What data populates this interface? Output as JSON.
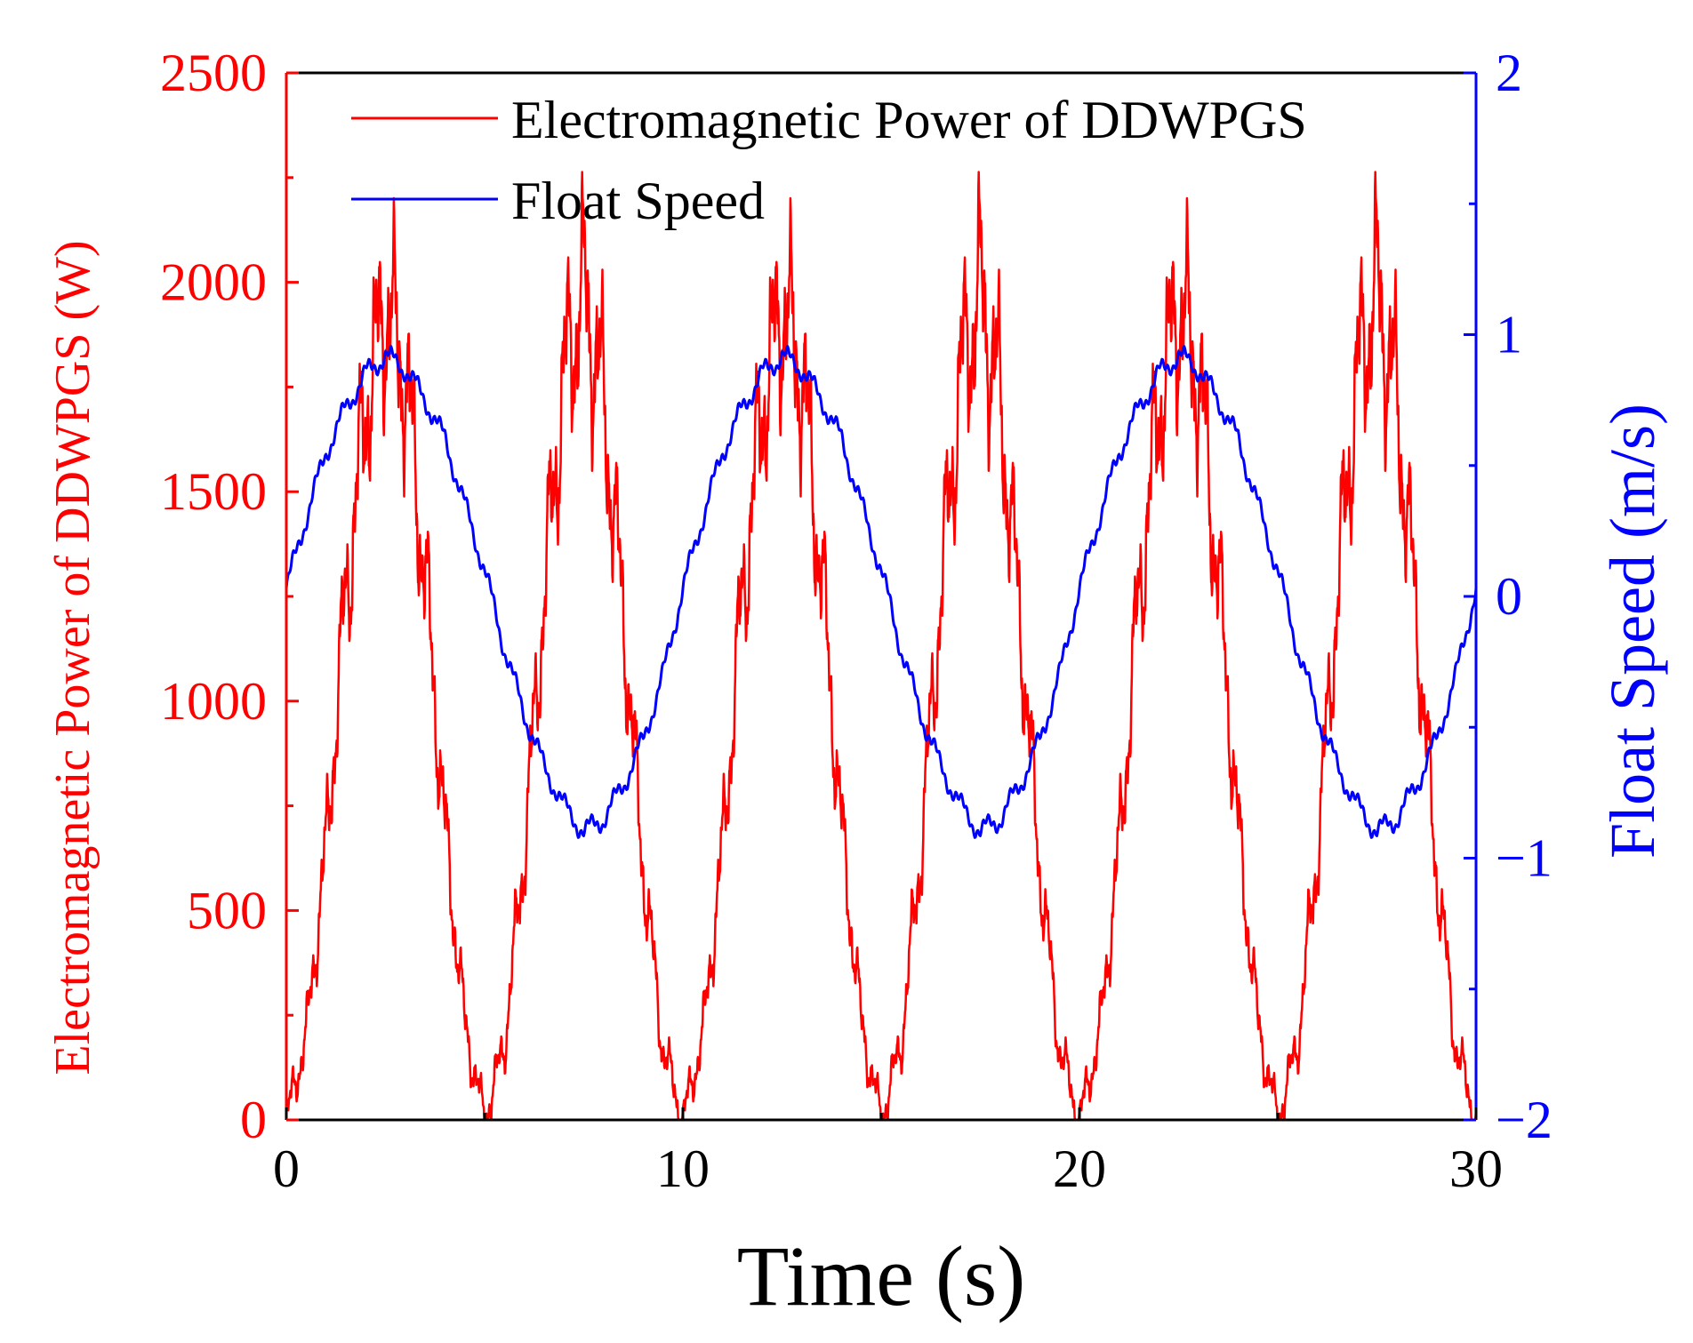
{
  "chart_data": {
    "type": "line",
    "title": "",
    "xlabel": "Time (s)",
    "ylabel_left": "Electromagnetic Power of DDWPGS (W)",
    "ylabel_right": "Float Speed (m/s)",
    "xlim": [
      0,
      30
    ],
    "ylim_left": [
      0,
      2500
    ],
    "ylim_right": [
      -2,
      2
    ],
    "x_ticks": [
      "0",
      "10",
      "20",
      "30"
    ],
    "y_left_ticks": [
      "0",
      "500",
      "1000",
      "1500",
      "2000",
      "2500"
    ],
    "y_right_ticks": [
      "−2",
      "−1",
      "0",
      "1",
      "2"
    ],
    "grid": false,
    "legend_position": "top",
    "period_s": 10,
    "series": [
      {
        "name": "Electromagnetic Power of DDWPGS",
        "axis": "left",
        "color": "#ff0000",
        "x": [
          0,
          0.5,
          1,
          1.5,
          2,
          2.5,
          3,
          3.5,
          4,
          4.5,
          5,
          5.5,
          6,
          6.5,
          7,
          7.5,
          8,
          8.5,
          9,
          9.5,
          10,
          10.5,
          11,
          11.5,
          12,
          12.5,
          13,
          13.5,
          14,
          14.5,
          15,
          15.5,
          16,
          16.5,
          17,
          17.5,
          18,
          18.5,
          19,
          19.5,
          20,
          20.5,
          21,
          21.5,
          22,
          22.5,
          23,
          23.5,
          24,
          24.5,
          25,
          25.5,
          26,
          26.5,
          27,
          27.5,
          28,
          28.5,
          29,
          29.5,
          30
        ],
        "values": [
          0,
          200,
          650,
          1250,
          1700,
          1950,
          1780,
          1300,
          700,
          230,
          0,
          180,
          640,
          1250,
          1780,
          1980,
          1720,
          1200,
          600,
          170,
          0,
          200,
          650,
          1250,
          1700,
          1950,
          1780,
          1300,
          700,
          230,
          0,
          180,
          640,
          1250,
          1780,
          1980,
          1720,
          1200,
          600,
          170,
          0,
          200,
          650,
          1250,
          1700,
          1950,
          1780,
          1300,
          700,
          230,
          0,
          180,
          640,
          1250,
          1780,
          1980,
          1720,
          1200,
          600,
          170,
          0
        ]
      },
      {
        "name": "Float Speed",
        "axis": "right",
        "color": "#0000ff",
        "x": [
          0,
          0.5,
          1,
          1.5,
          2,
          2.5,
          3,
          3.5,
          4,
          4.5,
          5,
          5.5,
          6,
          6.5,
          7,
          7.5,
          8,
          8.5,
          9,
          9.5,
          10,
          10.5,
          11,
          11.5,
          12,
          12.5,
          13,
          13.5,
          14,
          14.5,
          15,
          15.5,
          16,
          16.5,
          17,
          17.5,
          18,
          18.5,
          19,
          19.5,
          20,
          20.5,
          21,
          21.5,
          22,
          22.5,
          23,
          23.5,
          24,
          24.5,
          25,
          25.5,
          26,
          26.5,
          27,
          27.5,
          28,
          28.5,
          29,
          29.5,
          30
        ],
        "values": [
          0.03,
          0.3,
          0.55,
          0.72,
          0.85,
          0.92,
          0.87,
          0.75,
          0.6,
          0.35,
          0.1,
          -0.2,
          -0.45,
          -0.65,
          -0.8,
          -0.9,
          -0.85,
          -0.72,
          -0.55,
          -0.3,
          0.03,
          0.3,
          0.55,
          0.72,
          0.85,
          0.92,
          0.87,
          0.75,
          0.6,
          0.35,
          0.1,
          -0.2,
          -0.45,
          -0.65,
          -0.8,
          -0.9,
          -0.85,
          -0.72,
          -0.55,
          -0.3,
          0.03,
          0.3,
          0.55,
          0.72,
          0.85,
          0.92,
          0.87,
          0.75,
          0.6,
          0.35,
          0.1,
          -0.2,
          -0.45,
          -0.65,
          -0.8,
          -0.9,
          -0.85,
          -0.72,
          -0.55,
          -0.3,
          0.03
        ]
      }
    ]
  }
}
